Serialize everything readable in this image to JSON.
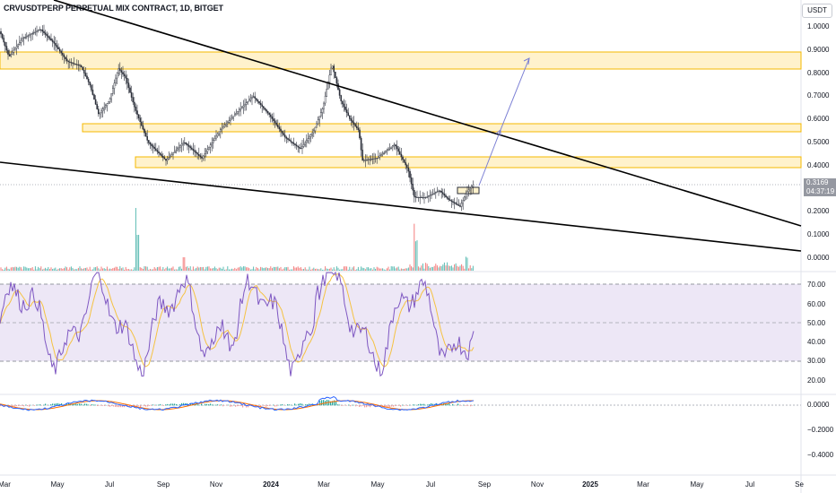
{
  "header": {
    "title": "CRVUSDTPERP PERPETUAL MIX CONTRACT, 1D, BITGET",
    "currency_button": "USDT"
  },
  "price_tag": {
    "price": "0.3169",
    "countdown": "04:37:19"
  },
  "colors": {
    "zone_fill": "#fff2cc",
    "zone_border": "#f5b800",
    "candle": "#2a2e39",
    "trendline": "#000000",
    "arrow": "#7b7fd4",
    "rsi_line": "#7e57c2",
    "rsi_ma": "#f5c242",
    "rsi_band": "#ede7f6",
    "macd_line": "#2962ff",
    "signal_line": "#ff6d00",
    "volume": "#ef5350",
    "price_tag_bg": "#9598a1"
  },
  "price_axis": {
    "labels": [
      "1.0000",
      "0.9000",
      "0.8000",
      "0.7000",
      "0.6000",
      "0.5000",
      "0.4000",
      "0.3000",
      "0.2000",
      "0.1000",
      "0.0000"
    ]
  },
  "rsi_axis": {
    "labels": [
      "70.00",
      "60.00",
      "50.00",
      "40.00",
      "30.00",
      "20.00"
    ]
  },
  "macd_axis": {
    "labels": [
      "0.0000",
      "−0.2000",
      "−0.4000"
    ]
  },
  "time_axis": {
    "labels": [
      {
        "text": "Mar",
        "bold": false
      },
      {
        "text": "May",
        "bold": false
      },
      {
        "text": "Jul",
        "bold": false
      },
      {
        "text": "Sep",
        "bold": false
      },
      {
        "text": "Nov",
        "bold": false
      },
      {
        "text": "2024",
        "bold": true
      },
      {
        "text": "Mar",
        "bold": false
      },
      {
        "text": "May",
        "bold": false
      },
      {
        "text": "Jul",
        "bold": false
      },
      {
        "text": "Sep",
        "bold": false
      },
      {
        "text": "Nov",
        "bold": false
      },
      {
        "text": "2025",
        "bold": true
      },
      {
        "text": "Mar",
        "bold": false
      },
      {
        "text": "May",
        "bold": false
      },
      {
        "text": "Jul",
        "bold": false
      },
      {
        "text": "Se",
        "bold": false
      }
    ]
  }
}
